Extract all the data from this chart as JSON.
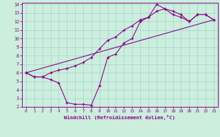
{
  "xlabel": "Windchill (Refroidissement éolien,°C)",
  "bg_color": "#cceedd",
  "line_color": "#880088",
  "xlim": [
    -0.5,
    23.5
  ],
  "ylim": [
    2,
    14.2
  ],
  "xticks": [
    0,
    1,
    2,
    3,
    4,
    5,
    6,
    7,
    8,
    9,
    10,
    11,
    12,
    13,
    14,
    15,
    16,
    17,
    18,
    19,
    20,
    21,
    22,
    23
  ],
  "yticks": [
    2,
    3,
    4,
    5,
    6,
    7,
    8,
    9,
    10,
    11,
    12,
    13,
    14
  ],
  "line1_x": [
    0,
    1,
    2,
    3,
    4,
    5,
    6,
    7,
    8,
    9,
    10,
    11,
    12,
    13,
    14,
    15,
    16,
    17,
    18,
    19,
    20,
    21,
    22,
    23
  ],
  "line1_y": [
    6.0,
    5.5,
    5.5,
    5.2,
    4.8,
    2.5,
    2.3,
    2.3,
    2.2,
    4.5,
    7.8,
    8.2,
    9.5,
    10.0,
    12.0,
    12.5,
    14.0,
    13.5,
    12.8,
    12.5,
    12.0,
    12.8,
    12.8,
    12.2
  ],
  "line2_x": [
    0,
    1,
    2,
    3,
    4,
    5,
    6,
    7,
    8,
    9,
    10,
    11,
    12,
    13,
    14,
    15,
    16,
    17,
    18,
    19,
    20,
    21,
    22,
    23
  ],
  "line2_y": [
    6.0,
    5.5,
    5.5,
    6.0,
    6.3,
    6.5,
    6.8,
    7.2,
    7.8,
    8.8,
    9.8,
    10.2,
    11.0,
    11.5,
    12.2,
    12.5,
    13.2,
    13.5,
    13.2,
    12.8,
    12.0,
    12.8,
    12.8,
    12.2
  ],
  "line3_x": [
    0,
    23
  ],
  "line3_y": [
    6.0,
    12.2
  ]
}
